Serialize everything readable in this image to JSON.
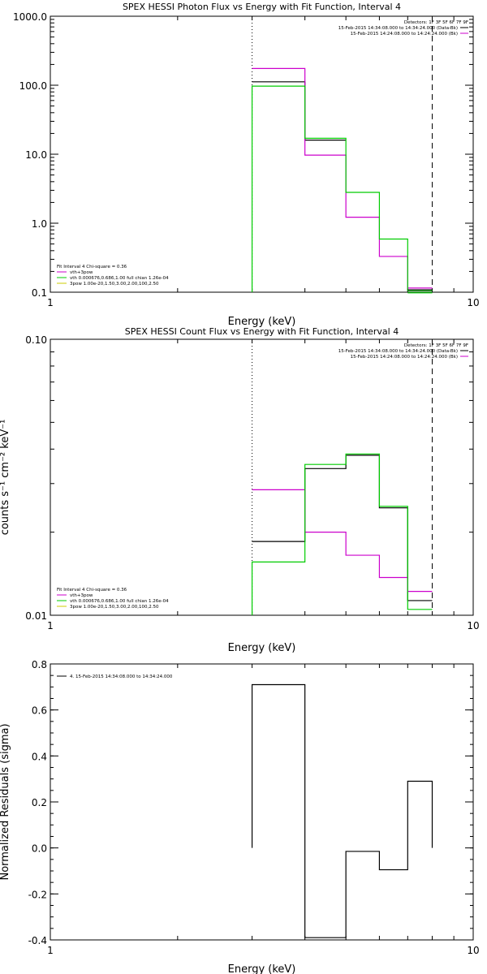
{
  "chart_data": [
    {
      "type": "line",
      "title": "SPEX HESSI Photon Flux vs Energy with Fit Function, Interval 4",
      "xlabel": "Energy (keV)",
      "ylabel": "",
      "x_scale": "log",
      "y_scale": "log",
      "xlim": [
        1,
        10
      ],
      "ylim": [
        0.1,
        1000
      ],
      "x_ticks": [
        {
          "v": 1,
          "label": "1"
        },
        {
          "v": 10,
          "label": "10"
        }
      ],
      "y_ticks": [
        {
          "v": 0.1,
          "label": "0.1"
        },
        {
          "v": 1,
          "label": "1.0"
        },
        {
          "v": 10,
          "label": "10.0"
        },
        {
          "v": 100,
          "label": "100.0"
        },
        {
          "v": 1000,
          "label": "1000.0"
        }
      ],
      "vlines": [
        {
          "x": 3.0,
          "style": "dotted"
        },
        {
          "x": 8.0,
          "style": "dashed"
        }
      ],
      "bin_edges": [
        3.0,
        4.0,
        5.0,
        6.0,
        7.0,
        8.0
      ],
      "series": [
        {
          "name": "Data",
          "color": "#000000",
          "values": [
            112,
            16,
            null,
            null,
            null
          ]
        },
        {
          "name": "vth+3pow",
          "color": "#cc00cc",
          "values": [
            175,
            9.7,
            1.22,
            0.33,
            0.115
          ]
        },
        {
          "name": "vth 0.000676,0.686,1.00  full chian 1.26e-04",
          "color": "#00cc00",
          "values": [
            97,
            17,
            2.8,
            0.59,
            0.105
          ]
        }
      ],
      "extra_lines": [
        {
          "x0": 7.0,
          "x1": 8.0,
          "y": 0.108,
          "color": "#000000"
        },
        {
          "x0": 7.0,
          "x1": 8.0,
          "y": 0.098,
          "color": "#00cc00"
        }
      ],
      "legend_left": [
        {
          "text": "Fit Interval 4   Chi-square = 0.36",
          "color": "#000000",
          "line": false
        },
        {
          "text": "vth+3pow",
          "color": "#cc00cc",
          "line": true
        },
        {
          "text": "vth 0.000676,0.686,1.00  full chian 1.26e-04",
          "color": "#00cc00",
          "line": true
        },
        {
          "text": "3pow 1.00e-20,1.50,3.00,2.00,100,2.50",
          "color": "#cccc00",
          "line": true
        }
      ],
      "legend_right": [
        {
          "text": "Detectors: 1F 3F 5F 6F 7F 9F",
          "color": "",
          "line": false
        },
        {
          "text": "15-Feb-2015 14:34:08.000 to 14:34:24.000 (Data-Bk)",
          "color": "#000000",
          "line": true
        },
        {
          "text": "15-Feb-2015 14:24:08.000 to 14:24:24.000 (Bk)",
          "color": "#cc00cc",
          "line": true
        }
      ]
    },
    {
      "type": "line",
      "title": "SPEX HESSI Count Flux vs Energy with Fit Function, Interval 4",
      "xlabel": "Energy (keV)",
      "ylabel": "counts s⁻¹ cm⁻² keV⁻¹",
      "x_scale": "log",
      "y_scale": "log",
      "xlim": [
        1,
        10
      ],
      "ylim": [
        0.01,
        0.1
      ],
      "x_ticks": [
        {
          "v": 1,
          "label": "1"
        },
        {
          "v": 10,
          "label": "10"
        }
      ],
      "y_ticks": [
        {
          "v": 0.01,
          "label": "0.01"
        },
        {
          "v": 0.1,
          "label": "0.10"
        }
      ],
      "vlines": [
        {
          "x": 3.0,
          "style": "dotted"
        },
        {
          "x": 8.0,
          "style": "dashed"
        }
      ],
      "bin_edges": [
        3.0,
        4.0,
        5.0,
        6.0,
        7.0,
        8.0
      ],
      "series": [
        {
          "name": "Data",
          "color": "#000000",
          "values": [
            0.0185,
            0.034,
            0.038,
            0.0245,
            0.0113
          ]
        },
        {
          "name": "vth+3pow",
          "color": "#cc00cc",
          "values": [
            0.0285,
            0.02,
            0.0165,
            0.0137,
            0.0122
          ]
        },
        {
          "name": "vth 0.000676,0.686,1.00  full chian 1.26e-04",
          "color": "#00cc00",
          "values": [
            0.0156,
            0.0352,
            0.0384,
            0.0248,
            0.0105
          ]
        }
      ],
      "extra_lines": [],
      "legend_left": [
        {
          "text": "Fit Interval 4   Chi-square = 0.36",
          "color": "#000000",
          "line": false
        },
        {
          "text": "vth+3pow",
          "color": "#cc00cc",
          "line": true
        },
        {
          "text": "vth 0.000676,0.686,1.00  full chian 1.26e-04",
          "color": "#00cc00",
          "line": true
        },
        {
          "text": "3pow 1.00e-20,1.50,3.00,2.00,100,2.50",
          "color": "#cccc00",
          "line": true
        }
      ],
      "legend_right": [
        {
          "text": "Detectors: 1F 3F 5F 6F 7F 9F",
          "color": "",
          "line": false
        },
        {
          "text": "15-Feb-2015 14:34:08.000 to 14:34:24.000 (Data-Bk)",
          "color": "#000000",
          "line": true
        },
        {
          "text": "15-Feb-2015 14:24:08.000 to 14:24:24.000 (Bk)",
          "color": "#cc00cc",
          "line": true
        }
      ]
    },
    {
      "type": "line",
      "title": "",
      "xlabel": "Energy (keV)",
      "ylabel": "Normalized Residuals (sigma)",
      "x_scale": "log",
      "y_scale": "linear",
      "xlim": [
        1,
        10
      ],
      "ylim": [
        -0.4,
        0.8
      ],
      "x_ticks": [
        {
          "v": 1,
          "label": "1"
        },
        {
          "v": 10,
          "label": "10"
        }
      ],
      "y_ticks": [
        {
          "v": -0.4,
          "label": "-0.4"
        },
        {
          "v": -0.2,
          "label": "-0.2"
        },
        {
          "v": 0.0,
          "label": "0.0"
        },
        {
          "v": 0.2,
          "label": "0.2"
        },
        {
          "v": 0.4,
          "label": "0.4"
        },
        {
          "v": 0.6,
          "label": "0.6"
        },
        {
          "v": 0.8,
          "label": "0.8"
        }
      ],
      "vlines": [],
      "bin_edges": [
        3.0,
        4.0,
        5.0,
        6.0,
        7.0,
        8.0
      ],
      "series": [
        {
          "name": "4. 15-Feb-2015 14:34:08.000 to 14:34:24.000",
          "color": "#000000",
          "values": [
            0.71,
            -0.39,
            -0.015,
            -0.095,
            0.29
          ]
        }
      ],
      "residual_style": true,
      "extra_lines": [],
      "legend_left": [
        {
          "text": "4. 15-Feb-2015 14:34:08.000 to 14:34:24.000",
          "color": "#000000",
          "line": true,
          "top": true
        }
      ],
      "legend_right": []
    }
  ]
}
